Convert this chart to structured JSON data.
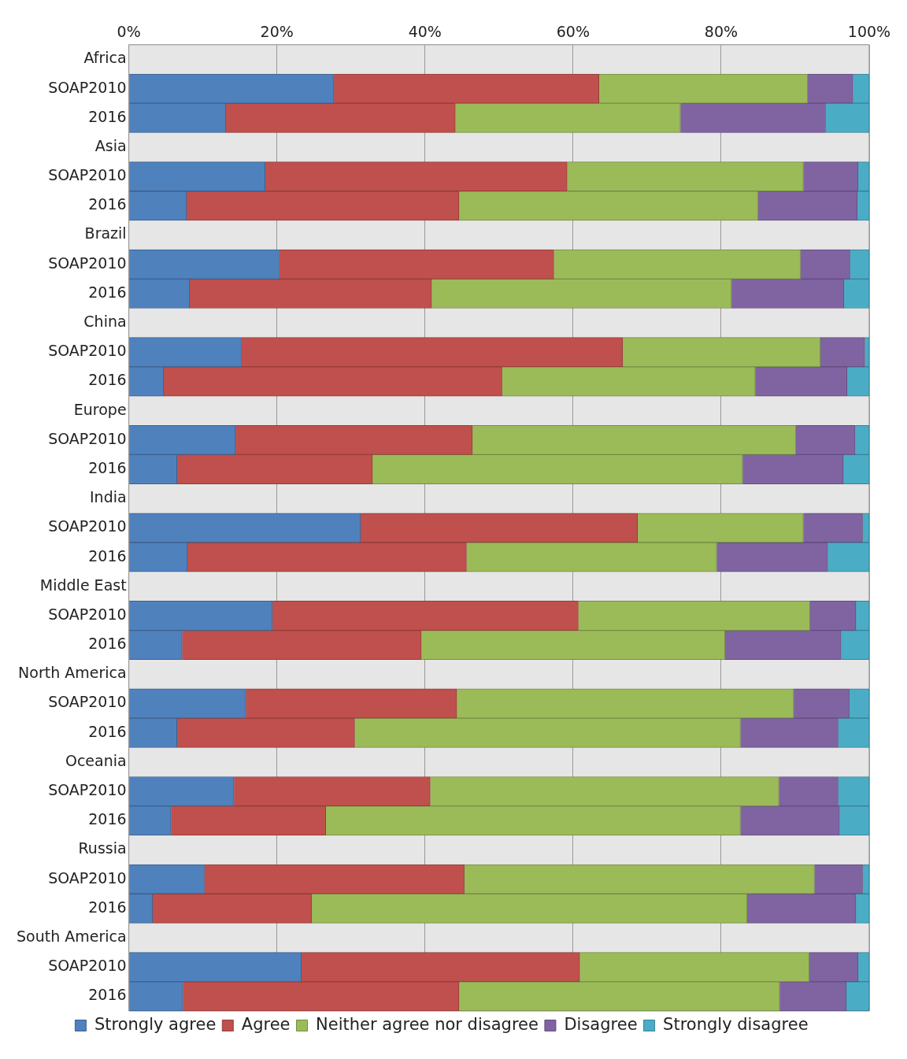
{
  "chart_data": {
    "type": "bar",
    "orientation": "horizontal",
    "stacked": true,
    "grid": "x",
    "legend": "bottom",
    "categories": [
      "Africa",
      "SOAP2010",
      "2016",
      "Asia",
      "SOAP2010",
      "2016",
      "Brazil",
      "SOAP2010",
      "2016",
      "China",
      "SOAP2010",
      "2016",
      "Europe",
      "SOAP2010",
      "2016",
      "India",
      "SOAP2010",
      "2016",
      "Middle East",
      "SOAP2010",
      "2016",
      "North America",
      "SOAP2010",
      "2016",
      "Oceania",
      "SOAP2010",
      "2016",
      "Russia",
      "SOAP2010",
      "2016",
      "South America",
      "SOAP2010",
      "2016"
    ],
    "xlim": [
      0,
      100
    ],
    "xticks": [
      {
        "value": 0,
        "label": "0%"
      },
      {
        "value": 20,
        "label": "20%"
      },
      {
        "value": 40,
        "label": "40%"
      },
      {
        "value": 60,
        "label": "60%"
      },
      {
        "value": 80,
        "label": "80%"
      },
      {
        "value": 100,
        "label": "100%"
      }
    ],
    "series": [
      {
        "name": "Strongly agree",
        "color": "#4f81bd",
        "values": [
          null,
          27.7,
          13.1,
          null,
          18.4,
          7.8,
          null,
          20.3,
          8.2,
          null,
          15.2,
          4.7,
          null,
          14.4,
          6.5,
          null,
          31.3,
          7.9,
          null,
          19.4,
          7.2,
          null,
          15.8,
          6.5,
          null,
          14.2,
          5.7,
          null,
          10.2,
          3.2,
          null,
          23.3,
          7.3
        ]
      },
      {
        "name": "Agree",
        "color": "#c0504d",
        "values": [
          null,
          35.8,
          31.0,
          null,
          40.8,
          36.8,
          null,
          37.1,
          32.7,
          null,
          51.5,
          45.7,
          null,
          32.0,
          26.4,
          null,
          37.4,
          37.7,
          null,
          41.3,
          32.3,
          null,
          28.5,
          24.0,
          null,
          26.5,
          20.9,
          null,
          35.1,
          21.5,
          null,
          37.6,
          37.3
        ]
      },
      {
        "name": "Neither agree nor disagree",
        "color": "#9bbb59",
        "values": [
          null,
          28.2,
          30.4,
          null,
          31.9,
          40.4,
          null,
          33.3,
          40.5,
          null,
          26.7,
          34.2,
          null,
          43.7,
          50.0,
          null,
          22.4,
          33.8,
          null,
          31.3,
          41.0,
          null,
          45.5,
          52.1,
          null,
          47.1,
          56.0,
          null,
          47.3,
          58.8,
          null,
          31.0,
          43.3
        ]
      },
      {
        "name": "Disagree",
        "color": "#8064a2",
        "values": [
          null,
          6.1,
          19.6,
          null,
          7.4,
          13.4,
          null,
          6.7,
          15.2,
          null,
          6.0,
          12.4,
          null,
          8.0,
          13.6,
          null,
          8.0,
          15.0,
          null,
          6.2,
          15.7,
          null,
          7.5,
          13.2,
          null,
          8.0,
          13.4,
          null,
          6.5,
          14.7,
          null,
          6.6,
          9.0
        ]
      },
      {
        "name": "Strongly disagree",
        "color": "#4bacc6",
        "values": [
          null,
          2.2,
          5.9,
          null,
          1.5,
          1.6,
          null,
          2.6,
          3.4,
          null,
          0.6,
          3.0,
          null,
          1.9,
          3.5,
          null,
          0.9,
          5.6,
          null,
          1.8,
          3.8,
          null,
          2.7,
          4.2,
          null,
          4.2,
          4.0,
          null,
          0.9,
          1.8,
          null,
          1.5,
          3.1
        ]
      }
    ]
  }
}
